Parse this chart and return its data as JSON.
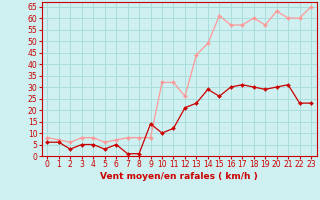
{
  "hours": [
    0,
    1,
    2,
    3,
    4,
    5,
    6,
    7,
    8,
    9,
    10,
    11,
    12,
    13,
    14,
    15,
    16,
    17,
    18,
    19,
    20,
    21,
    22,
    23
  ],
  "wind_avg": [
    6,
    6,
    3,
    5,
    5,
    3,
    5,
    1,
    1,
    14,
    10,
    12,
    21,
    23,
    29,
    26,
    30,
    31,
    30,
    29,
    30,
    31,
    23,
    23
  ],
  "wind_gust": [
    8,
    7,
    6,
    8,
    8,
    6,
    7,
    8,
    8,
    8,
    32,
    32,
    26,
    44,
    49,
    61,
    57,
    57,
    60,
    57,
    63,
    60,
    60,
    65
  ],
  "bg_color": "#cef0f0",
  "grid_color": "#aadddd",
  "avg_color": "#cc0000",
  "gust_color": "#ff9999",
  "axis_label_color": "#cc0000",
  "spine_color": "#cc0000",
  "xlabel": "Vent moyen/en rafales ( km/h )",
  "ylim": [
    0,
    67
  ],
  "yticks": [
    0,
    5,
    10,
    15,
    20,
    25,
    30,
    35,
    40,
    45,
    50,
    55,
    60,
    65
  ],
  "tick_fontsize": 5.5,
  "xlabel_fontsize": 6.5
}
